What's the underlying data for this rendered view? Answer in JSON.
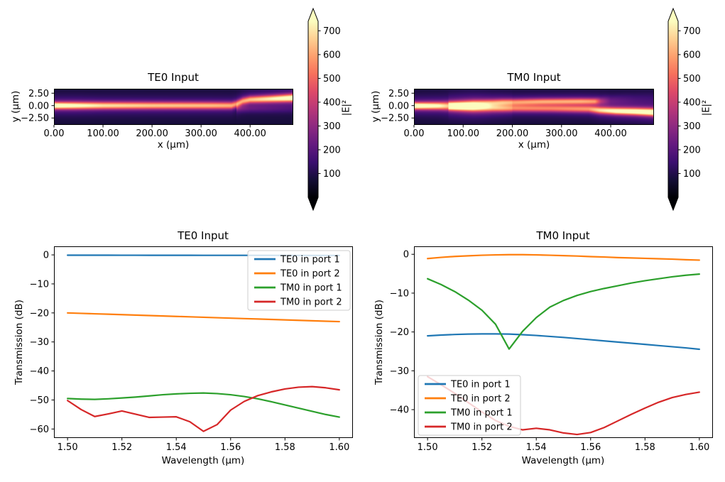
{
  "figure": {
    "background": "#ffffff"
  },
  "colors": {
    "axes_edge": "#000000",
    "legend_edge": "#cccccc",
    "legend_face": "#ffffff",
    "magma_stops": [
      "#000004",
      "#140e36",
      "#3b0f70",
      "#641a80",
      "#8c2981",
      "#b73779",
      "#de4968",
      "#f7705c",
      "#fe9f6d",
      "#fecf92",
      "#fcfdbf"
    ]
  },
  "chart_data": [
    {
      "type": "heatmap",
      "id": "field-te0",
      "title": "TE0 Input",
      "xlabel": "x (μm)",
      "ylabel": "y (μm)",
      "xlim": [
        0,
        488
      ],
      "ylim": [
        -3.9,
        3.4
      ],
      "xticks": {
        "values": [
          0,
          100,
          200,
          300,
          400
        ],
        "labels": [
          "0.00",
          "100.00",
          "200.00",
          "300.00",
          "400.00"
        ]
      },
      "yticks": {
        "values": [
          2.5,
          0,
          -2.5
        ],
        "labels": [
          "2.50",
          "0.00",
          "−2.50"
        ]
      },
      "colorbar": {
        "label": "|E|²",
        "vmin": 0,
        "vmax": 740,
        "extend": "both",
        "ticks": {
          "values": [
            100,
            200,
            300,
            400,
            500,
            600,
            700
          ],
          "labels": [
            "100",
            "200",
            "300",
            "400",
            "500",
            "600",
            "700"
          ]
        }
      },
      "background_level": 80,
      "beams": [
        {
          "name": "te0-guided-beam",
          "nodes": [
            [
              0,
              0,
              760,
              0.5
            ],
            [
              40,
              0,
              700,
              0.52
            ],
            [
              100,
              0,
              620,
              0.52
            ],
            [
              200,
              0,
              580,
              0.52
            ],
            [
              320,
              0,
              560,
              0.52
            ],
            [
              362,
              0,
              540,
              0.52
            ],
            [
              372,
              0.3,
              500,
              0.5
            ],
            [
              385,
              0.9,
              520,
              0.5
            ],
            [
              400,
              1.2,
              560,
              0.5
            ],
            [
              440,
              1.35,
              640,
              0.52
            ],
            [
              488,
              1.55,
              750,
              0.55
            ]
          ]
        },
        {
          "name": "te0-residual-beam",
          "nodes": [
            [
              372,
              -0.5,
              160,
              0.5
            ],
            [
              400,
              -0.55,
              110,
              0.55
            ],
            [
              488,
              -0.65,
              55,
              0.6
            ]
          ]
        }
      ]
    },
    {
      "type": "heatmap",
      "id": "field-tm0",
      "title": "TM0 Input",
      "xlabel": "x (μm)",
      "ylabel": "y (μm)",
      "xlim": [
        0,
        488
      ],
      "ylim": [
        -3.9,
        3.4
      ],
      "xticks": {
        "values": [
          0,
          100,
          200,
          300,
          400
        ],
        "labels": [
          "0.00",
          "100.00",
          "200.00",
          "300.00",
          "400.00"
        ]
      },
      "yticks": {
        "values": [
          2.5,
          0,
          -2.5
        ],
        "labels": [
          "2.50",
          "0.00",
          "−2.50"
        ]
      },
      "colorbar": {
        "label": "|E|²",
        "vmin": 0,
        "vmax": 740,
        "extend": "both",
        "ticks": {
          "values": [
            100,
            200,
            300,
            400,
            500,
            600,
            700
          ],
          "labels": [
            "100",
            "200",
            "300",
            "400",
            "500",
            "600",
            "700"
          ]
        }
      },
      "background_level": 80,
      "beams": [
        {
          "name": "tm0-input-beam",
          "nodes": [
            [
              0,
              -0.05,
              770,
              0.5
            ],
            [
              50,
              -0.05,
              680,
              0.55
            ],
            [
              90,
              -0.1,
              480,
              0.7
            ],
            [
              130,
              -0.15,
              260,
              0.9
            ],
            [
              160,
              -0.2,
              120,
              1.0
            ],
            [
              200,
              -0.2,
              40,
              1.0
            ]
          ]
        },
        {
          "name": "tm0-upper-arm",
          "nodes": [
            [
              70,
              0.1,
              120,
              0.5
            ],
            [
              120,
              0.4,
              330,
              0.5
            ],
            [
              180,
              0.65,
              450,
              0.48
            ],
            [
              260,
              0.8,
              490,
              0.46
            ],
            [
              340,
              0.85,
              500,
              0.46
            ],
            [
              368,
              0.85,
              470,
              0.46
            ],
            [
              380,
              0.9,
              260,
              0.55
            ],
            [
              400,
              1.0,
              120,
              0.7
            ],
            [
              450,
              1.2,
              70,
              0.85
            ],
            [
              488,
              1.35,
              55,
              0.95
            ]
          ]
        },
        {
          "name": "tm0-lower-arm",
          "nodes": [
            [
              70,
              -0.25,
              200,
              0.5
            ],
            [
              120,
              -0.45,
              380,
              0.5
            ],
            [
              180,
              -0.55,
              420,
              0.5
            ],
            [
              280,
              -0.6,
              430,
              0.5
            ],
            [
              355,
              -0.7,
              470,
              0.5
            ],
            [
              378,
              -0.95,
              600,
              0.5
            ],
            [
              410,
              -1.1,
              700,
              0.5
            ],
            [
              450,
              -1.2,
              740,
              0.52
            ],
            [
              488,
              -1.35,
              770,
              0.55
            ]
          ]
        }
      ]
    },
    {
      "type": "line",
      "id": "spectrum-te0",
      "title": "TE0 Input",
      "xlabel": "Wavelength (μm)",
      "ylabel": "Transmission (dB)",
      "xlim": [
        1.495,
        1.605
      ],
      "ylim": [
        -63.1,
        2.95
      ],
      "xticks": {
        "values": [
          1.5,
          1.52,
          1.54,
          1.56,
          1.58,
          1.6
        ],
        "labels": [
          "1.50",
          "1.52",
          "1.54",
          "1.56",
          "1.58",
          "1.60"
        ]
      },
      "yticks": {
        "values": [
          0,
          -10,
          -20,
          -30,
          -40,
          -50,
          -60
        ],
        "labels": [
          "0",
          "−10",
          "−20",
          "−30",
          "−40",
          "−50",
          "−60"
        ]
      },
      "legend": {
        "position": "upper right",
        "entries": [
          "TE0 in port 1",
          "TE0 in port 2",
          "TM0 in port 1",
          "TM0 in port 2"
        ]
      },
      "x": [
        1.5,
        1.505,
        1.51,
        1.515,
        1.52,
        1.525,
        1.53,
        1.535,
        1.54,
        1.545,
        1.55,
        1.555,
        1.56,
        1.565,
        1.57,
        1.575,
        1.58,
        1.585,
        1.59,
        1.595,
        1.6
      ],
      "series": [
        {
          "name": "TE0 in port 1",
          "color": "#1f77b4",
          "y": [
            -0.1,
            -0.1,
            -0.11,
            -0.11,
            -0.12,
            -0.12,
            -0.13,
            -0.13,
            -0.14,
            -0.14,
            -0.15,
            -0.15,
            -0.16,
            -0.16,
            -0.17,
            -0.17,
            -0.18,
            -0.18,
            -0.19,
            -0.19,
            -0.2
          ]
        },
        {
          "name": "TE0 in port 2",
          "color": "#ff7f0e",
          "y": [
            -20.0,
            -20.15,
            -20.3,
            -20.45,
            -20.6,
            -20.75,
            -20.9,
            -21.05,
            -21.2,
            -21.35,
            -21.5,
            -21.65,
            -21.8,
            -21.95,
            -22.1,
            -22.25,
            -22.4,
            -22.55,
            -22.7,
            -22.85,
            -23.0
          ]
        },
        {
          "name": "TM0 in port 1",
          "color": "#2ca02c",
          "y": [
            -49.5,
            -49.7,
            -49.8,
            -49.6,
            -49.3,
            -49.0,
            -48.6,
            -48.2,
            -47.9,
            -47.7,
            -47.6,
            -47.8,
            -48.2,
            -48.8,
            -49.6,
            -50.6,
            -51.7,
            -52.8,
            -53.9,
            -55.0,
            -55.9
          ]
        },
        {
          "name": "TM0 in port 2",
          "color": "#d62728",
          "y": [
            -50.2,
            -53.3,
            -55.7,
            -54.8,
            -53.8,
            -54.9,
            -56.0,
            -55.9,
            -55.8,
            -57.5,
            -60.8,
            -58.5,
            -53.5,
            -50.5,
            -48.5,
            -47.2,
            -46.2,
            -45.6,
            -45.4,
            -45.8,
            -46.5
          ]
        }
      ]
    },
    {
      "type": "line",
      "id": "spectrum-tm0",
      "title": "TM0 Input",
      "xlabel": "Wavelength (μm)",
      "ylabel": "Transmission (dB)",
      "xlim": [
        1.495,
        1.605
      ],
      "ylim": [
        -47.3,
        2.05
      ],
      "xticks": {
        "values": [
          1.5,
          1.52,
          1.54,
          1.56,
          1.58,
          1.6
        ],
        "labels": [
          "1.50",
          "1.52",
          "1.54",
          "1.56",
          "1.58",
          "1.60"
        ]
      },
      "yticks": {
        "values": [
          0,
          -10,
          -20,
          -30,
          -40
        ],
        "labels": [
          "0",
          "−10",
          "−20",
          "−30",
          "−40"
        ]
      },
      "legend": {
        "position": "lower left",
        "entries": [
          "TE0 in port 1",
          "TE0 in port 2",
          "TM0 in port 1",
          "TM0 in port 2"
        ]
      },
      "x": [
        1.5,
        1.505,
        1.51,
        1.515,
        1.52,
        1.525,
        1.53,
        1.535,
        1.54,
        1.545,
        1.55,
        1.555,
        1.56,
        1.565,
        1.57,
        1.575,
        1.58,
        1.585,
        1.59,
        1.595,
        1.6
      ],
      "series": [
        {
          "name": "TE0 in port 1",
          "color": "#1f77b4",
          "y": [
            -21.0,
            -20.8,
            -20.65,
            -20.55,
            -20.5,
            -20.5,
            -20.55,
            -20.7,
            -20.9,
            -21.15,
            -21.4,
            -21.7,
            -22.0,
            -22.3,
            -22.6,
            -22.9,
            -23.2,
            -23.5,
            -23.8,
            -24.1,
            -24.45
          ]
        },
        {
          "name": "TE0 in port 2",
          "color": "#ff7f0e",
          "y": [
            -1.1,
            -0.8,
            -0.55,
            -0.4,
            -0.25,
            -0.15,
            -0.1,
            -0.1,
            -0.15,
            -0.25,
            -0.35,
            -0.45,
            -0.6,
            -0.7,
            -0.85,
            -0.95,
            -1.05,
            -1.15,
            -1.25,
            -1.4,
            -1.5
          ]
        },
        {
          "name": "TM0 in port 1",
          "color": "#2ca02c",
          "y": [
            -6.3,
            -7.8,
            -9.6,
            -11.8,
            -14.4,
            -18.0,
            -24.4,
            -19.8,
            -16.3,
            -13.6,
            -11.9,
            -10.6,
            -9.6,
            -8.8,
            -8.1,
            -7.4,
            -6.8,
            -6.3,
            -5.8,
            -5.4,
            -5.1
          ]
        },
        {
          "name": "TM0 in port 2",
          "color": "#d62728",
          "y": [
            -31.5,
            -33.6,
            -35.8,
            -38.2,
            -40.6,
            -42.8,
            -44.3,
            -45.2,
            -44.8,
            -45.2,
            -46.0,
            -46.4,
            -45.9,
            -44.6,
            -42.9,
            -41.2,
            -39.6,
            -38.1,
            -36.9,
            -36.1,
            -35.5
          ]
        }
      ]
    }
  ]
}
